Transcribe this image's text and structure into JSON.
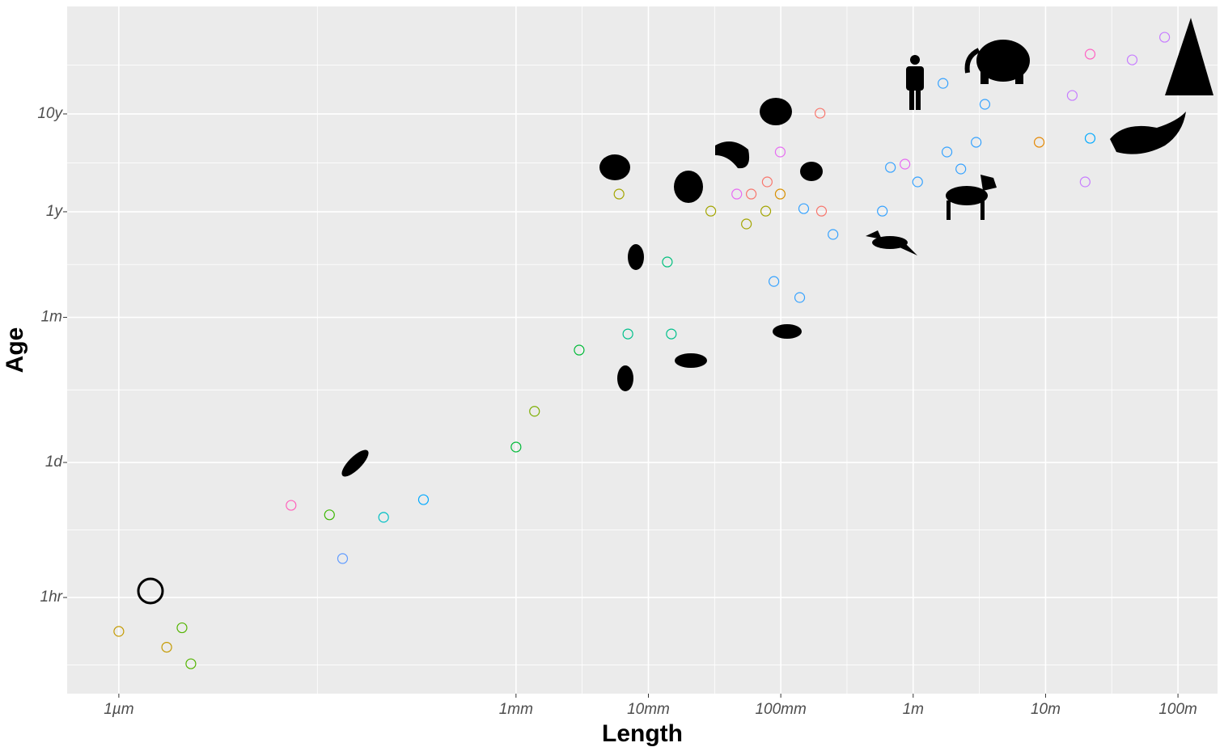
{
  "chart_data": {
    "type": "scatter",
    "x_label": "Length",
    "y_label": "Age",
    "log_x": true,
    "log_y": true,
    "grid": true,
    "minor_grid": true,
    "xlim": [
      4.07e-07,
      199
    ],
    "ylim": [
      0.104,
      1100000
    ],
    "xticks": [
      {
        "value": 1e-06,
        "label": "1µm"
      },
      {
        "value": 0.001,
        "label": "1mm"
      },
      {
        "value": 0.01,
        "label": "10mm"
      },
      {
        "value": 0.1,
        "label": "100mm"
      },
      {
        "value": 1,
        "label": "1m"
      },
      {
        "value": 10,
        "label": "10m"
      },
      {
        "value": 100,
        "label": "100m"
      }
    ],
    "yticks": [
      {
        "value": 1,
        "label": "1hr"
      },
      {
        "value": 24,
        "label": "1d"
      },
      {
        "value": 730,
        "label": "1m"
      },
      {
        "value": 8766,
        "label": "1y"
      },
      {
        "value": 87660,
        "label": "10y"
      }
    ],
    "x": [
      1e-06,
      2.3e-06,
      3e-06,
      3.5e-06,
      2e-05,
      3.9e-05,
      4.9e-05,
      0.0001,
      0.0002,
      0.001,
      0.00138,
      0.003,
      0.006,
      0.007,
      0.0139,
      0.0149,
      0.0296,
      0.0465,
      0.055,
      0.0598,
      0.077,
      0.079,
      0.0887,
      0.099,
      0.099,
      0.139,
      0.149,
      0.198,
      0.203,
      0.248,
      0.585,
      0.673,
      0.867,
      1.08,
      1.68,
      1.8,
      2.29,
      2.99,
      3.48,
      8.95,
      15.9,
      19.9,
      21.7,
      21.7,
      45.1,
      79.3
    ],
    "values": [
      0.45,
      0.31,
      0.49,
      0.21,
      8.75,
      7,
      2.5,
      6.6,
      10,
      34.5,
      80,
      338,
      13300,
      494,
      2690,
      494,
      8900,
      13300,
      6580,
      13300,
      8900,
      17700,
      1700,
      35800,
      13300,
      1165,
      9440,
      89100,
      8900,
      5140,
      8900,
      24900,
      26900,
      17700,
      180000,
      35800,
      24000,
      45000,
      110000,
      45000,
      135500,
      17700,
      49400,
      358000,
      313000,
      533000
    ],
    "colors": [
      "#C49A00",
      "#C49A00",
      "#53B400",
      "#53B400",
      "#FF62BC",
      "#39B600",
      "#619CFF",
      "#00BFC4",
      "#00A9FF",
      "#00BA38",
      "#7CAE00",
      "#00BA38",
      "#A3A500",
      "#00C08B",
      "#00BF7D",
      "#00C08B",
      "#A3A500",
      "#E76BF3",
      "#A3A500",
      "#F8766D",
      "#A3A500",
      "#F8766D",
      "#35A2FF",
      "#E76BF3",
      "#D89000",
      "#35A2FF",
      "#35A2FF",
      "#F8766D",
      "#F8766D",
      "#35A2FF",
      "#35A2FF",
      "#35A2FF",
      "#E76BF3",
      "#35A2FF",
      "#35A2FF",
      "#35A2FF",
      "#35A2FF",
      "#35A2FF",
      "#35A2FF",
      "#E58700",
      "#C77CFF",
      "#C77CFF",
      "#00A9FF",
      "#FF61C3",
      "#C77CFF",
      "#C77CFF"
    ]
  }
}
